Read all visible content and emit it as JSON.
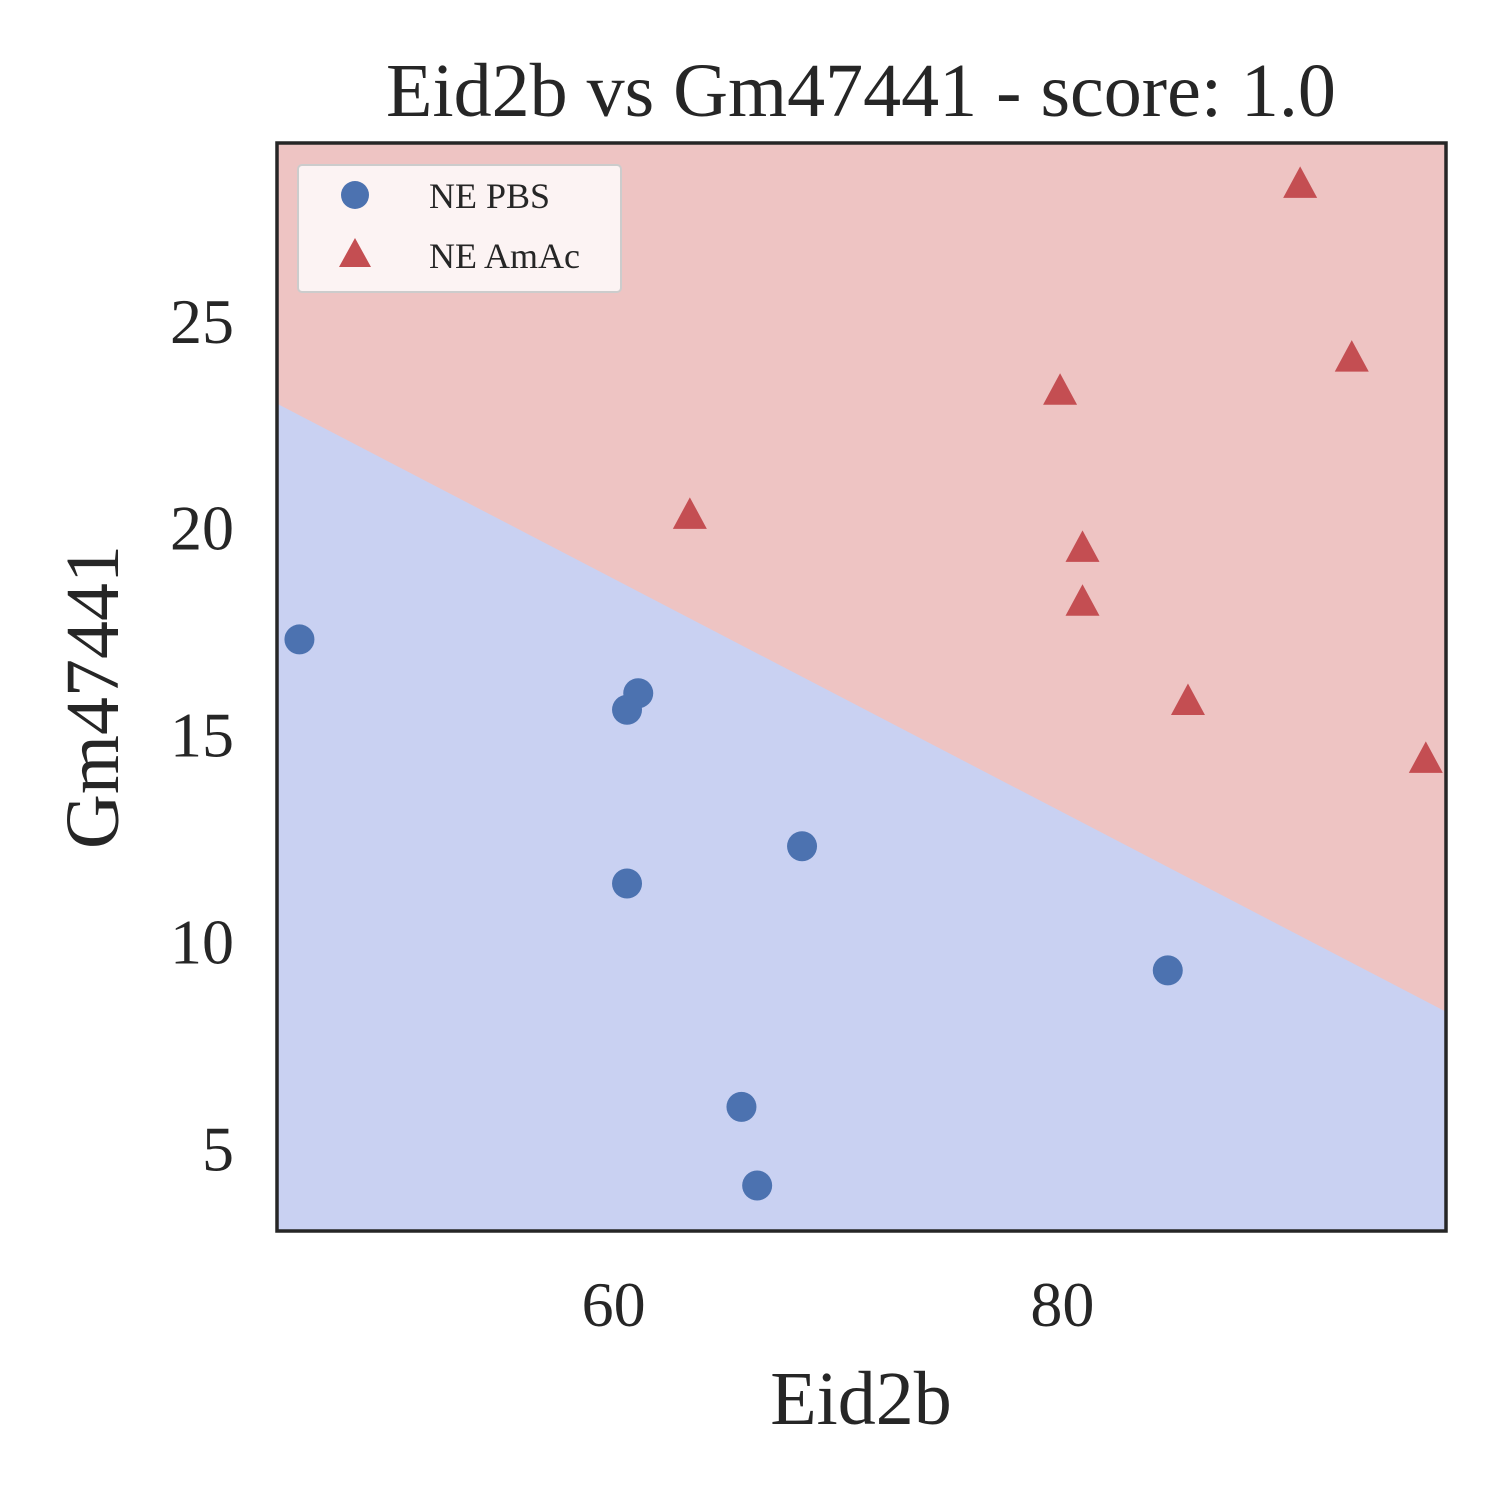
{
  "chart_data": {
    "type": "scatter",
    "title": "Eid2b vs Gm47441 - score: 1.0",
    "xlabel": "Eid2b",
    "ylabel": "Gm47441",
    "xlim": [
      45,
      97.1
    ],
    "ylim": [
      3.0,
      29.3
    ],
    "xticks": [
      60,
      80
    ],
    "yticks": [
      5,
      10,
      15,
      20,
      25
    ],
    "grid": false,
    "legend_position": "top-left",
    "decision_boundary": {
      "line": [
        [
          45,
          23.0
        ],
        [
          97.1,
          8.3
        ]
      ],
      "region_above_color": "#eec4c3",
      "region_below_color": "#c9d1f2",
      "region_above_label": "NE AmAc",
      "region_below_label": "NE PBS"
    },
    "series": [
      {
        "name": "NE PBS",
        "marker": "circle",
        "color": "#4c72b0",
        "points": [
          [
            46.0,
            17.3
          ],
          [
            61.1,
            16.0
          ],
          [
            60.6,
            15.6
          ],
          [
            68.4,
            12.3
          ],
          [
            60.6,
            11.4
          ],
          [
            84.7,
            9.3
          ],
          [
            65.7,
            6.0
          ],
          [
            66.4,
            4.1
          ]
        ]
      },
      {
        "name": "NE AmAc",
        "marker": "triangle",
        "color": "#c44e52",
        "points": [
          [
            90.6,
            28.3
          ],
          [
            92.9,
            24.1
          ],
          [
            79.9,
            23.3
          ],
          [
            63.4,
            20.3
          ],
          [
            80.9,
            19.5
          ],
          [
            80.9,
            18.2
          ],
          [
            85.6,
            15.8
          ],
          [
            96.2,
            14.4
          ]
        ]
      }
    ]
  }
}
